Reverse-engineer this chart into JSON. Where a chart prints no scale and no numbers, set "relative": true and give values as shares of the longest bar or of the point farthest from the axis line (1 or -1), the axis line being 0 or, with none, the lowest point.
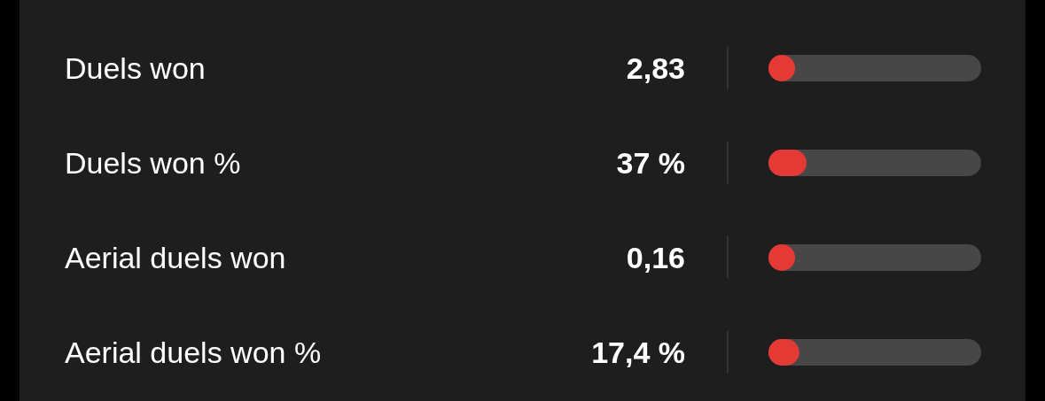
{
  "chart_data": {
    "type": "bar",
    "orientation": "horizontal",
    "relative": true,
    "categories": [
      "Duels won",
      "Duels won %",
      "Aerial duels won",
      "Aerial duels won %"
    ],
    "values": [
      0.7,
      1,
      0.7,
      0.81
    ],
    "annotations": [
      "2,83",
      "37 %",
      "0,16",
      "17,4 %"
    ],
    "color": "#e53935"
  }
}
